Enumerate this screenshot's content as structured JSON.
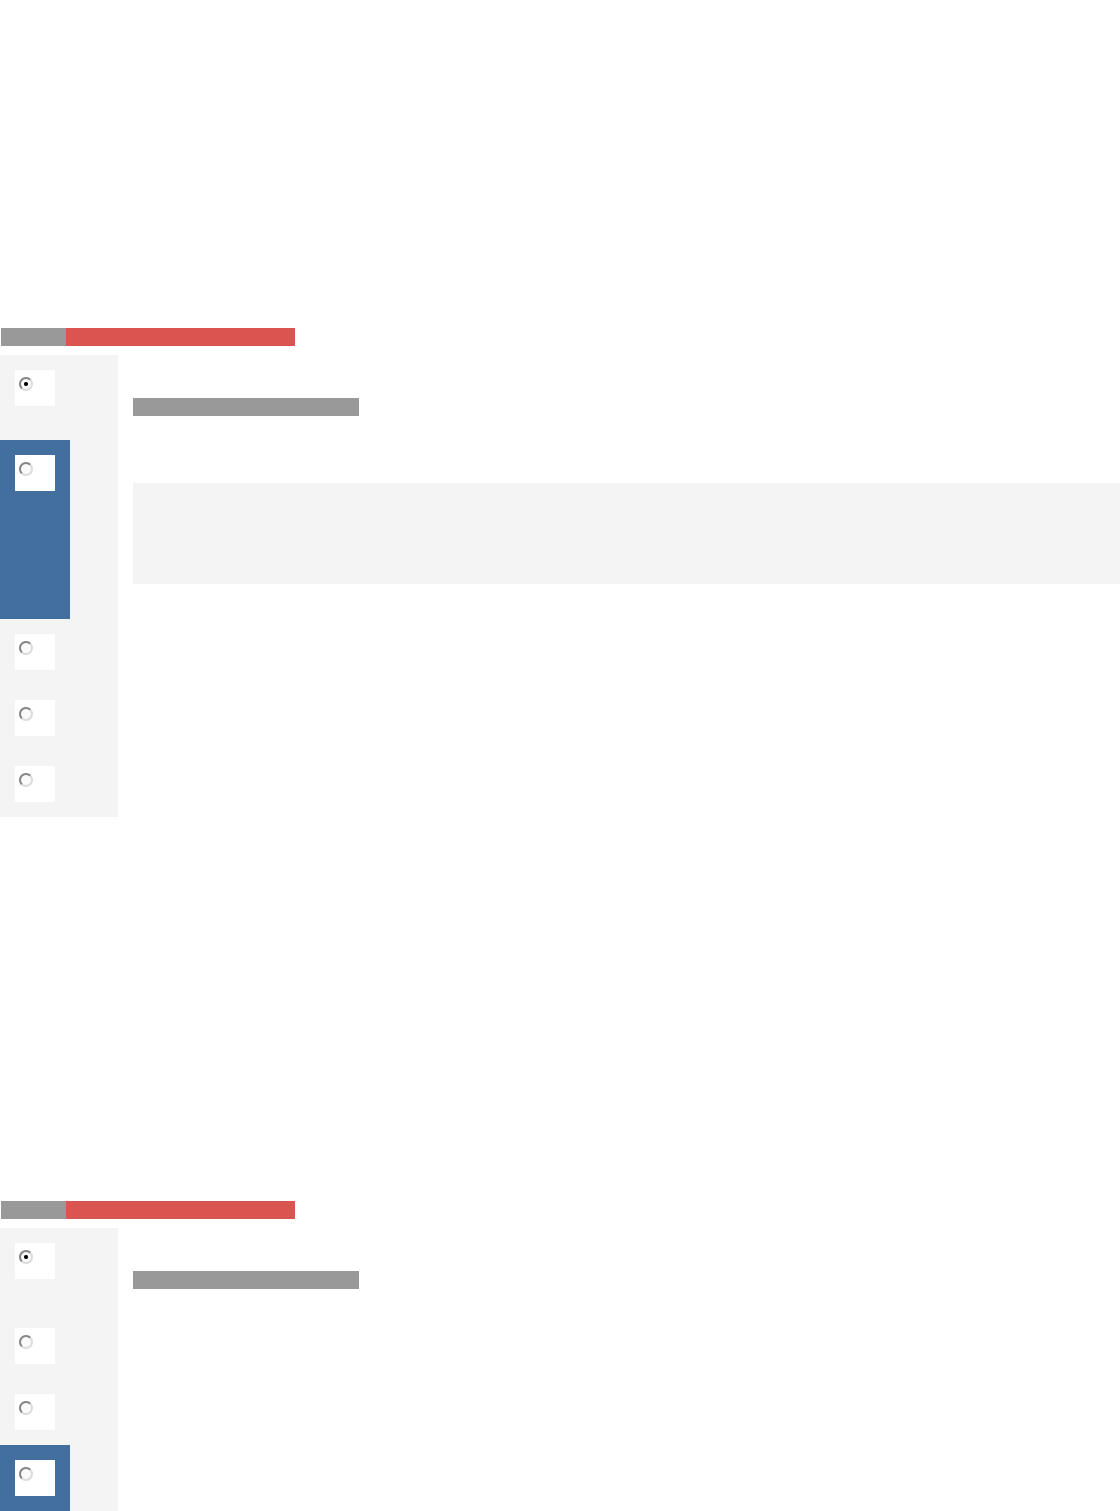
{
  "colors": {
    "progress_done": "#999999",
    "progress_accent": "#db5550",
    "selected": "#426f9e",
    "panel": "#f4f4f4",
    "placeholder": "#999999"
  },
  "sections": [
    {
      "radios": [
        {
          "checked": true,
          "highlighted": false
        },
        {
          "checked": false,
          "highlighted": true
        },
        {
          "checked": false,
          "highlighted": false
        },
        {
          "checked": false,
          "highlighted": false
        },
        {
          "checked": false,
          "highlighted": false
        }
      ]
    },
    {
      "radios": [
        {
          "checked": true,
          "highlighted": false
        },
        {
          "checked": false,
          "highlighted": false
        },
        {
          "checked": false,
          "highlighted": false
        },
        {
          "checked": false,
          "highlighted": true
        }
      ]
    }
  ]
}
